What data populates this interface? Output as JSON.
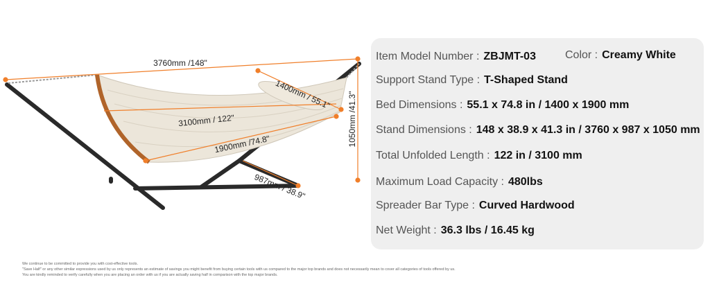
{
  "dimensions": {
    "length": "3760mm /148\"",
    "bed_width": "1400mm / 55.1\"",
    "spreader": "3100mm / 122\"",
    "bed_length": "1900mm /74.8\"",
    "height": "1050mm /41.3\"",
    "base": "987mm / 38.9\""
  },
  "specs": [
    {
      "label": "Item Model Number :",
      "value": "ZBJMT-03"
    },
    {
      "label": "Support Stand Type :",
      "value": "T-Shaped Stand"
    },
    {
      "label": "Bed Dimensions :",
      "value": "55.1 x 74.8 in / 1400 x 1900 mm"
    },
    {
      "label": "Stand Dimensions :",
      "value": "148 x 38.9 x 41.3 in / 3760 x 987 x 1050 mm"
    },
    {
      "label": "Total Unfolded Length :",
      "value": "122 in / 3100 mm"
    },
    {
      "label": "Maximum Load Capacity :",
      "value": "480lbs"
    },
    {
      "label": "Spreader Bar Type :",
      "value": "Curved Hardwood"
    },
    {
      "label": "Net Weight :",
      "value": "36.3 lbs / 16.45 kg"
    }
  ],
  "color": {
    "label": "Color :",
    "value": "Creamy White"
  },
  "disclaimer": [
    "We continue to be committed to provide you with cost-effective tools.",
    "\"Save Half\" or any other similar expressions used by us only represents an estimate of savings you might benefit from buying certain tools with us compared to the major top brands and does not necessarily mean to cover all categories of tools offered by us.",
    "You are kindly reminded to verify carefully when you are placing an order with us if you are actually saving half in comparison with the top major brands."
  ]
}
